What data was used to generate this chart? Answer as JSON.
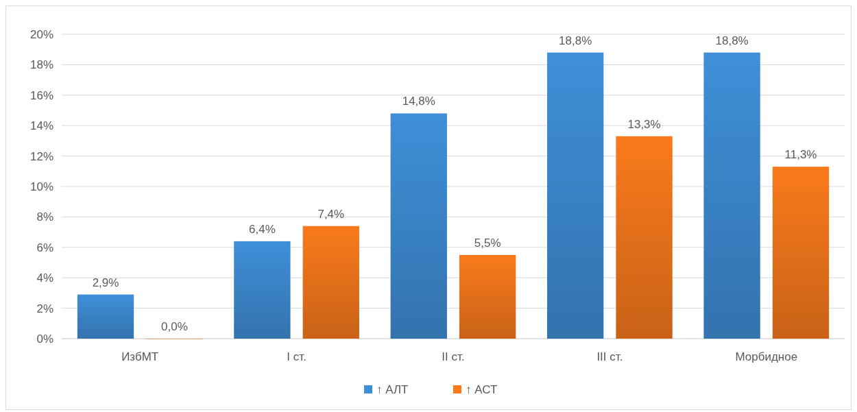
{
  "chart_data": {
    "type": "bar",
    "categories": [
      "ИзбМТ",
      "I ст.",
      "II ст.",
      "III ст.",
      "Морбидное"
    ],
    "series": [
      {
        "name": "↑ АЛТ",
        "color": "#3f8fd8",
        "values": [
          2.9,
          6.4,
          14.8,
          18.8,
          18.8
        ],
        "value_labels": [
          "2,9%",
          "6,4%",
          "14,8%",
          "18,8%",
          "18,8%"
        ]
      },
      {
        "name": "↑ АСТ",
        "color": "#f97a1c",
        "values": [
          0,
          7.4,
          5.5,
          13.3,
          11.3
        ],
        "value_labels": [
          "0,0%",
          "7,4%",
          "5,5%",
          "13,3%",
          "11,3%"
        ]
      }
    ],
    "ylim": [
      0,
      20
    ],
    "yticks": [
      {
        "value": 0,
        "label": "0%"
      },
      {
        "value": 2,
        "label": "2%"
      },
      {
        "value": 4,
        "label": "4%"
      },
      {
        "value": 6,
        "label": "6%"
      },
      {
        "value": 8,
        "label": "8%"
      },
      {
        "value": 10,
        "label": "10%"
      },
      {
        "value": 12,
        "label": "12%"
      },
      {
        "value": 14,
        "label": "14%"
      },
      {
        "value": 16,
        "label": "16%"
      },
      {
        "value": 18,
        "label": "18%"
      },
      {
        "value": 20,
        "label": "20%"
      }
    ],
    "grid": true,
    "legend": "bottom"
  }
}
